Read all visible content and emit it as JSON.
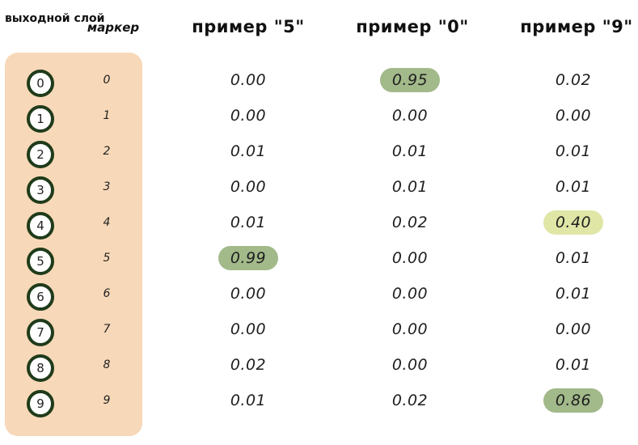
{
  "headers": {
    "output_layer": "выходной слой",
    "label": "маркер",
    "examples": [
      "пример \"5\"",
      "пример \"0\"",
      "пример \"9\""
    ]
  },
  "colors": {
    "panel": "#f7d8b8",
    "neuron_border": "#1f3b1a",
    "highlight_strong": "#a2b98a",
    "highlight_light": "#dfe6a6"
  },
  "rows": [
    {
      "neuron": "0",
      "label": "0",
      "values": [
        "0.00",
        "0.95",
        "0.02"
      ]
    },
    {
      "neuron": "1",
      "label": "1",
      "values": [
        "0.00",
        "0.00",
        "0.00"
      ]
    },
    {
      "neuron": "2",
      "label": "2",
      "values": [
        "0.01",
        "0.01",
        "0.01"
      ]
    },
    {
      "neuron": "3",
      "label": "3",
      "values": [
        "0.00",
        "0.01",
        "0.01"
      ]
    },
    {
      "neuron": "4",
      "label": "4",
      "values": [
        "0.01",
        "0.02",
        "0.40"
      ]
    },
    {
      "neuron": "5",
      "label": "5",
      "values": [
        "0.99",
        "0.00",
        "0.01"
      ]
    },
    {
      "neuron": "6",
      "label": "6",
      "values": [
        "0.00",
        "0.00",
        "0.01"
      ]
    },
    {
      "neuron": "7",
      "label": "7",
      "values": [
        "0.00",
        "0.00",
        "0.00"
      ]
    },
    {
      "neuron": "8",
      "label": "8",
      "values": [
        "0.02",
        "0.00",
        "0.01"
      ]
    },
    {
      "neuron": "9",
      "label": "9",
      "values": [
        "0.01",
        "0.02",
        "0.86"
      ]
    }
  ],
  "highlights": [
    {
      "row": 0,
      "col": 1,
      "style": "strong"
    },
    {
      "row": 5,
      "col": 0,
      "style": "strong"
    },
    {
      "row": 4,
      "col": 2,
      "style": "light"
    },
    {
      "row": 9,
      "col": 2,
      "style": "strong"
    }
  ]
}
